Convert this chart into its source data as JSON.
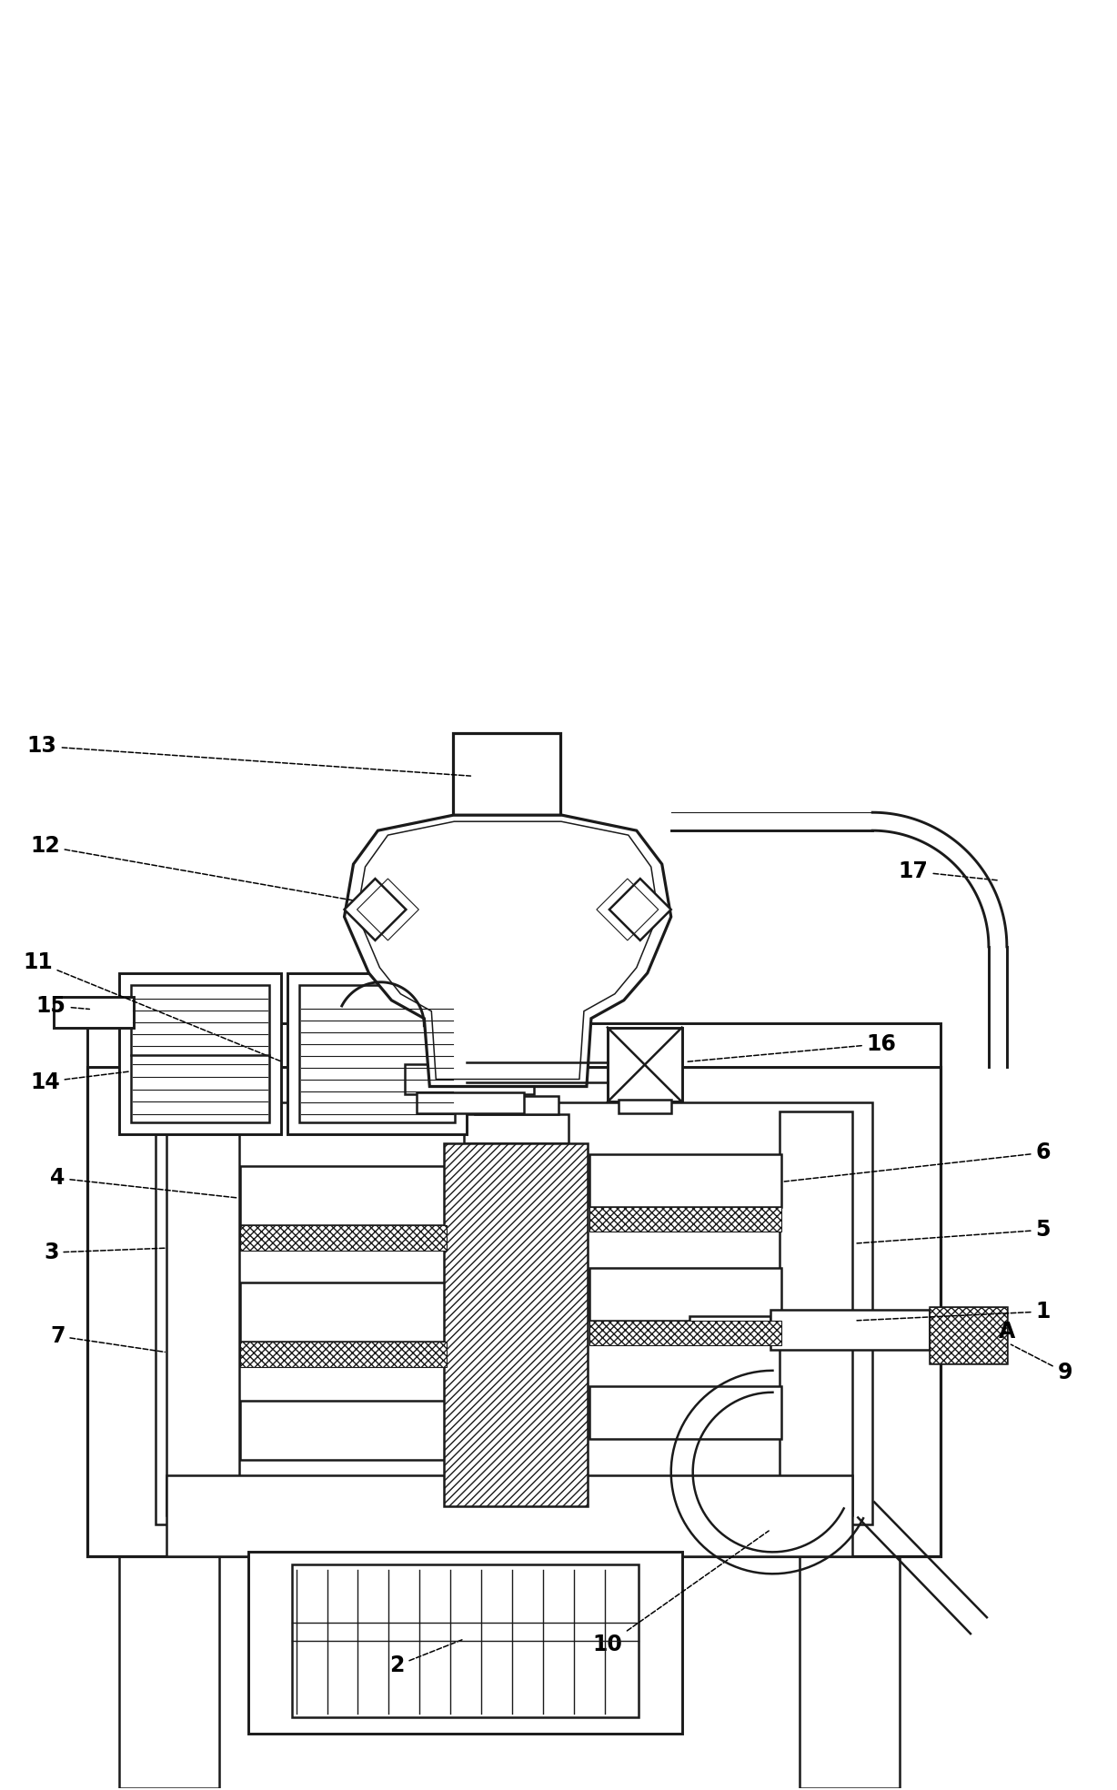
{
  "fig_width": 12.28,
  "fig_height": 19.68,
  "dpi": 100,
  "bg_color": "#ffffff",
  "lc": "#1a1a1a",
  "lw_main": 1.8,
  "lw_thin": 0.8,
  "label_fontsize": 17
}
